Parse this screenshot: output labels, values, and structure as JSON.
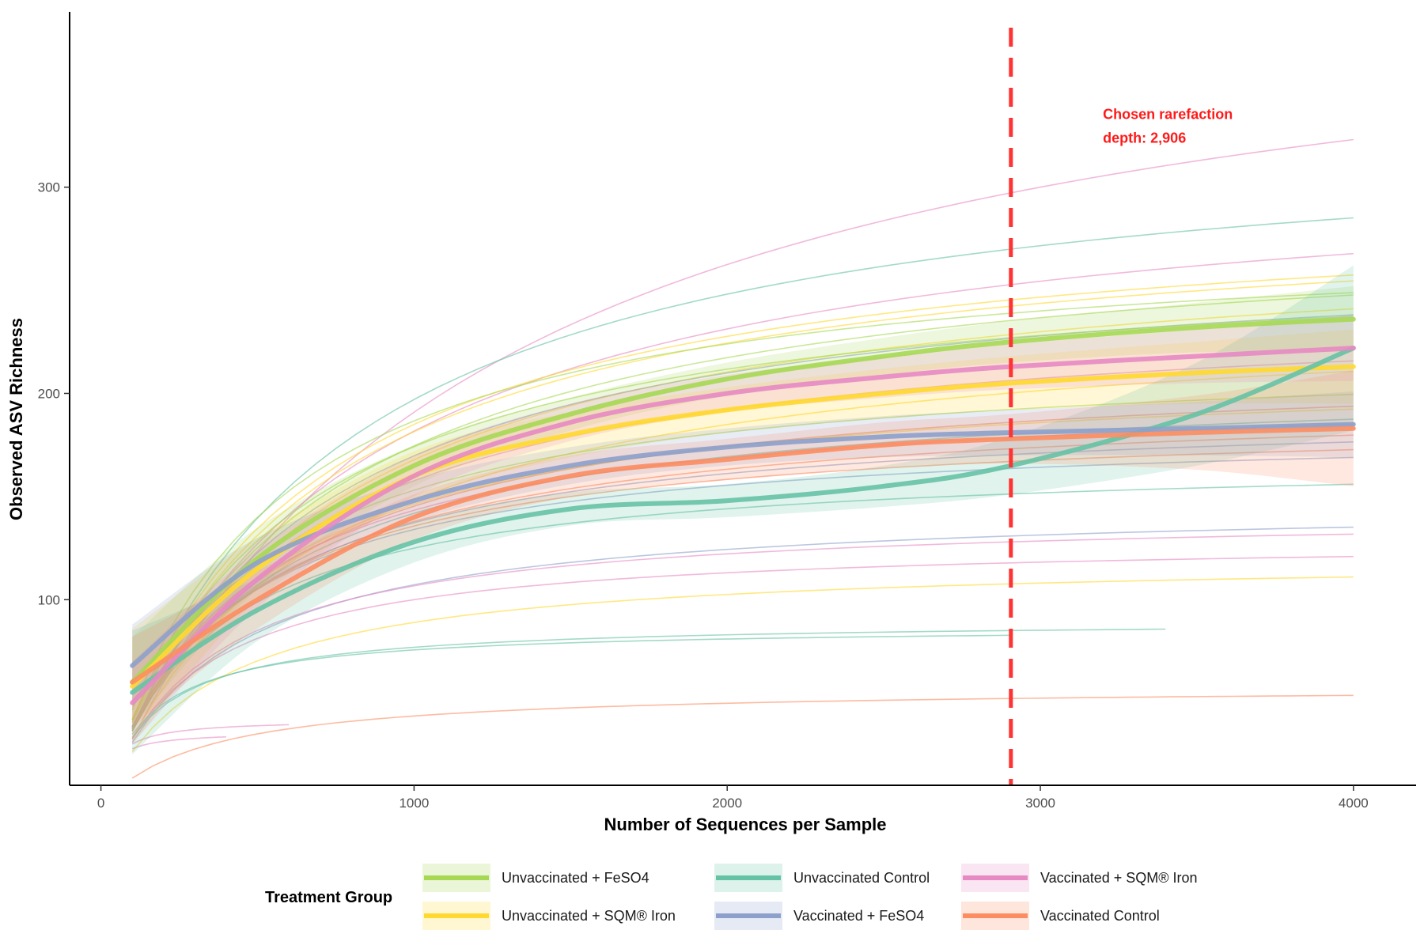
{
  "chart_data": {
    "type": "line",
    "title": "",
    "xlabel": "Number of Sequences per Sample",
    "ylabel": "Observed ASV Richness",
    "xlim": [
      -100,
      4200
    ],
    "ylim": [
      10,
      385
    ],
    "x_ticks": [
      0,
      1000,
      2000,
      3000,
      4000
    ],
    "y_ticks": [
      100,
      200,
      300
    ],
    "grid": false,
    "legend_position": "bottom",
    "legend_title": "Treatment Group",
    "annotation": {
      "text_lines": [
        "Chosen rarefaction",
        "depth: 2,906"
      ],
      "x": 3200,
      "y": 333,
      "color": "#ff2a2a"
    },
    "reference_line": {
      "x": 2906,
      "style": "dashed",
      "color": "#ff3333"
    },
    "groups": [
      {
        "name": "Unvaccinated + FeSO4",
        "color": "#a6d854"
      },
      {
        "name": "Unvaccinated + SQM® Iron",
        "color": "#ffd92f"
      },
      {
        "name": "Unvaccinated Control",
        "color": "#66c2a5"
      },
      {
        "name": "Vaccinated + FeSO4",
        "color": "#8da0cb"
      },
      {
        "name": "Vaccinated + SQM® Iron",
        "color": "#e78ac3"
      },
      {
        "name": "Vaccinated Control",
        "color": "#fc8d62"
      }
    ],
    "fits": [
      {
        "group": 0,
        "x": [
          100,
          500,
          1000,
          1500,
          2000,
          2500,
          2906,
          3500,
          4000
        ],
        "y": [
          60,
          120,
          165,
          190,
          207,
          218,
          225,
          232,
          236
        ],
        "band": [
          22,
          15,
          10,
          8,
          8,
          9,
          10,
          12,
          16
        ]
      },
      {
        "group": 1,
        "x": [
          100,
          500,
          1000,
          1500,
          2000,
          2500,
          2906,
          3500,
          4000
        ],
        "y": [
          58,
          115,
          160,
          180,
          192,
          200,
          205,
          210,
          213
        ],
        "band": [
          28,
          15,
          12,
          11,
          11,
          12,
          13,
          15,
          18
        ]
      },
      {
        "group": 2,
        "x": [
          100,
          500,
          1000,
          1500,
          2000,
          2500,
          2906,
          3500,
          4000
        ],
        "y": [
          55,
          95,
          128,
          144,
          148,
          155,
          165,
          190,
          222
        ],
        "band": [
          30,
          15,
          10,
          8,
          8,
          10,
          14,
          25,
          40
        ]
      },
      {
        "group": 3,
        "x": [
          100,
          500,
          1000,
          1500,
          2000,
          2500,
          2906,
          3500,
          4000
        ],
        "y": [
          68,
          118,
          148,
          165,
          174,
          179,
          181,
          183,
          185
        ],
        "band": [
          20,
          12,
          10,
          9,
          9,
          10,
          11,
          13,
          16
        ]
      },
      {
        "group": 4,
        "x": [
          100,
          500,
          1000,
          1500,
          2000,
          2500,
          2906,
          3500,
          4000
        ],
        "y": [
          50,
          110,
          160,
          186,
          200,
          208,
          213,
          218,
          222
        ],
        "band": [
          20,
          14,
          10,
          9,
          9,
          10,
          11,
          13,
          16
        ]
      },
      {
        "group": 5,
        "x": [
          100,
          500,
          1000,
          1500,
          2000,
          2500,
          2906,
          3500,
          4000
        ],
        "y": [
          60,
          100,
          140,
          160,
          168,
          175,
          178,
          181,
          183
        ],
        "band": [
          22,
          14,
          11,
          10,
          10,
          11,
          12,
          18,
          28
        ]
      }
    ],
    "samples": [
      {
        "group": 4,
        "asymptote": 420,
        "k": 1200,
        "start": 100,
        "end": 4000
      },
      {
        "group": 2,
        "asymptote": 335,
        "k": 700,
        "start": 100,
        "end": 4000
      },
      {
        "group": 4,
        "asymptote": 318,
        "k": 750,
        "start": 100,
        "end": 4000
      },
      {
        "group": 1,
        "asymptote": 296,
        "k": 600,
        "start": 100,
        "end": 4000
      },
      {
        "group": 1,
        "asymptote": 294,
        "k": 620,
        "start": 100,
        "end": 4000
      },
      {
        "group": 0,
        "asymptote": 288,
        "k": 650,
        "start": 100,
        "end": 4000
      },
      {
        "group": 1,
        "asymptote": 282,
        "k": 680,
        "start": 100,
        "end": 4000
      },
      {
        "group": 0,
        "asymptote": 280,
        "k": 500,
        "start": 100,
        "end": 4000
      },
      {
        "group": 3,
        "asymptote": 275,
        "k": 620,
        "start": 100,
        "end": 4000
      },
      {
        "group": 0,
        "asymptote": 270,
        "k": 550,
        "start": 100,
        "end": 4000
      },
      {
        "group": 4,
        "asymptote": 246,
        "k": 560,
        "start": 100,
        "end": 4000
      },
      {
        "group": 1,
        "asymptote": 245,
        "k": 650,
        "start": 100,
        "end": 4000
      },
      {
        "group": 0,
        "asymptote": 222,
        "k": 450,
        "start": 100,
        "end": 4000
      },
      {
        "group": 5,
        "asymptote": 218,
        "k": 500,
        "start": 100,
        "end": 4000
      },
      {
        "group": 1,
        "asymptote": 215,
        "k": 470,
        "start": 100,
        "end": 4000
      },
      {
        "group": 2,
        "asymptote": 210,
        "k": 480,
        "start": 100,
        "end": 4000
      },
      {
        "group": 4,
        "asymptote": 205,
        "k": 430,
        "start": 100,
        "end": 4000
      },
      {
        "group": 5,
        "asymptote": 200,
        "k": 450,
        "start": 100,
        "end": 4000
      },
      {
        "group": 3,
        "asymptote": 195,
        "k": 420,
        "start": 100,
        "end": 4000
      },
      {
        "group": 5,
        "asymptote": 190,
        "k": 400,
        "start": 100,
        "end": 4000
      },
      {
        "group": 3,
        "asymptote": 185,
        "k": 380,
        "start": 100,
        "end": 4000
      },
      {
        "group": 2,
        "asymptote": 170,
        "k": 360,
        "start": 100,
        "end": 4000
      },
      {
        "group": 3,
        "asymptote": 148,
        "k": 380,
        "start": 100,
        "end": 4000
      },
      {
        "group": 4,
        "asymptote": 143,
        "k": 340,
        "start": 100,
        "end": 4000
      },
      {
        "group": 4,
        "asymptote": 130,
        "k": 300,
        "start": 100,
        "end": 4000
      },
      {
        "group": 1,
        "asymptote": 121,
        "k": 360,
        "start": 100,
        "end": 4000
      },
      {
        "group": 2,
        "asymptote": 90,
        "k": 170,
        "start": 100,
        "end": 3400
      },
      {
        "group": 2,
        "asymptote": 87,
        "k": 150,
        "start": 100,
        "end": 2906
      },
      {
        "group": 5,
        "asymptote": 58,
        "k": 330,
        "start": 100,
        "end": 4000
      },
      {
        "group": 4,
        "asymptote": 42,
        "k": 40,
        "start": 100,
        "end": 600
      },
      {
        "group": 4,
        "asymptote": 36,
        "k": 30,
        "start": 100,
        "end": 400
      }
    ]
  }
}
